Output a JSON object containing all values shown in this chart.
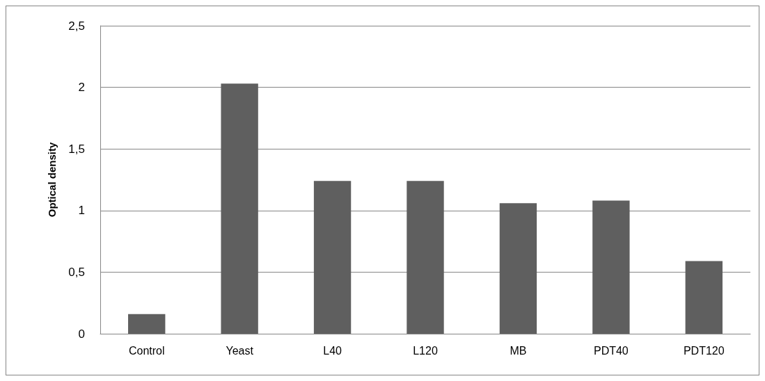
{
  "chart_data": {
    "type": "bar",
    "ylabel": "Optical density",
    "categories": [
      "Control",
      "Yeast",
      "L40",
      "L120",
      "MB",
      "PDT40",
      "PDT120"
    ],
    "values": [
      0.16,
      2.03,
      1.24,
      1.24,
      1.06,
      1.08,
      0.59
    ],
    "color": "#5f5f5f",
    "ylim": [
      0,
      2.5
    ],
    "yticks": [
      0,
      {
        "value": 0.5,
        "label": "0,5"
      },
      1,
      {
        "value": 1.5,
        "label": "1,5"
      },
      2,
      {
        "value": 2.5,
        "label": "2,5"
      }
    ],
    "grid": "y"
  }
}
